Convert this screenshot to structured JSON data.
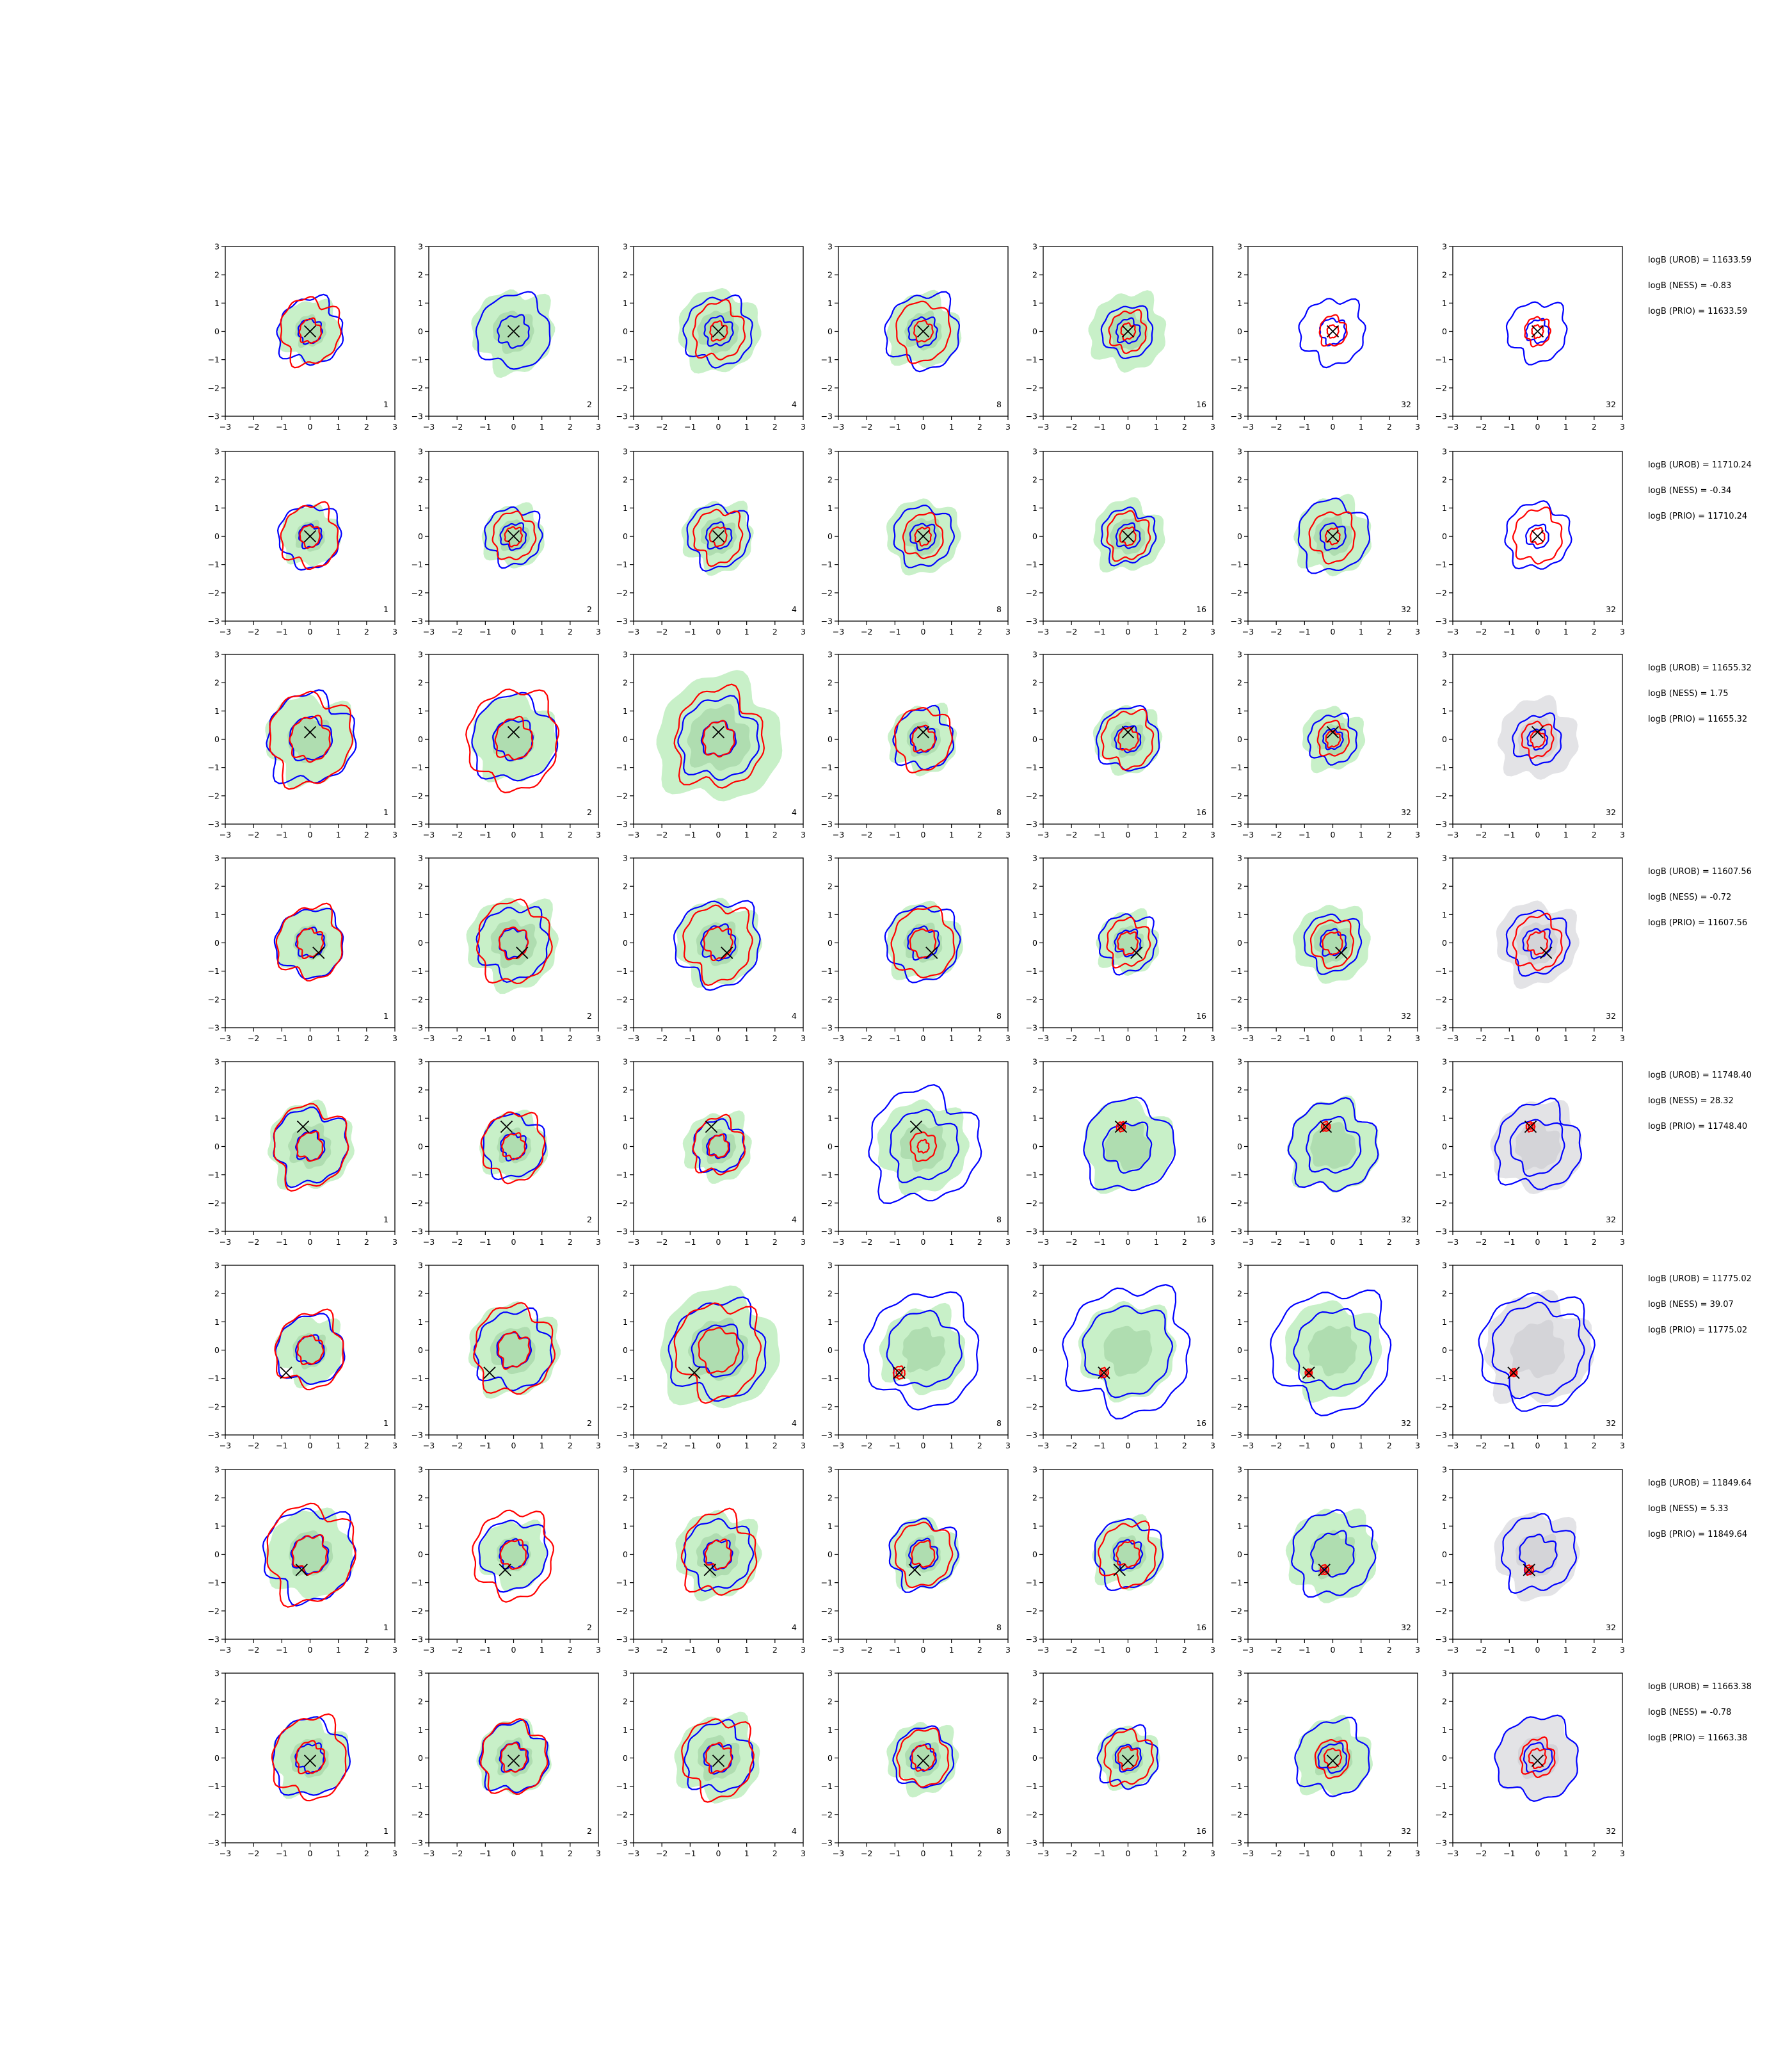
{
  "chart_data": {
    "type": "contour-grid",
    "rows": 8,
    "cols": 7,
    "xlim": [
      -3,
      3
    ],
    "ylim": [
      -3,
      3
    ],
    "ticks": [
      -3,
      -2,
      -1,
      0,
      1,
      2,
      3
    ],
    "tick_labels": [
      "−3",
      "−2",
      "−1",
      "0",
      "1",
      "2",
      "3"
    ],
    "column_labels": [
      "1",
      "2",
      "4",
      "8",
      "16",
      "32",
      "32"
    ],
    "colors": {
      "fill_green": "#c8f0c8",
      "fill_green_inner": "#a9d8aa",
      "fill_gray": "#e3e3e6",
      "fill_gray_inner": "#d0d0d4",
      "contour_blue": "#0000ff",
      "contour_red": "#ff0000",
      "marker": "#000000"
    },
    "row_stats": [
      {
        "urob": "logB (UROB) = 11633.59",
        "ness": "logB (NESS) = -0.83",
        "prio": "logB (PRIO) = 11633.59"
      },
      {
        "urob": "logB (UROB) = 11710.24",
        "ness": "logB (NESS) = -0.34",
        "prio": "logB (PRIO) = 11710.24"
      },
      {
        "urob": "logB (UROB) = 11655.32",
        "ness": "logB (NESS) = 1.75",
        "prio": "logB (PRIO) = 11655.32"
      },
      {
        "urob": "logB (UROB) = 11607.56",
        "ness": "logB (NESS) = -0.72",
        "prio": "logB (PRIO) = 11607.56"
      },
      {
        "urob": "logB (UROB) = 11748.40",
        "ness": "logB (NESS) = 28.32",
        "prio": "logB (PRIO) = 11748.40"
      },
      {
        "urob": "logB (UROB) = 11775.02",
        "ness": "logB (NESS) = 39.07",
        "prio": "logB (PRIO) = 11775.02"
      },
      {
        "urob": "logB (UROB) = 11849.64",
        "ness": "logB (NESS) = 5.33",
        "prio": "logB (PRIO) = 11849.64"
      },
      {
        "urob": "logB (UROB) = 11663.38",
        "ness": "logB (NESS) = -0.78",
        "prio": "logB (PRIO) = 11663.38"
      }
    ],
    "markers": [
      [
        0,
        0
      ],
      [
        0,
        0
      ],
      [
        0,
        0.25
      ],
      [
        0.3,
        -0.35
      ],
      [
        -0.25,
        0.7
      ],
      [
        -0.85,
        -0.8
      ],
      [
        -0.3,
        -0.55
      ],
      [
        0,
        -0.1
      ]
    ],
    "rows_data": [
      [
        {
          "shade": 1.1,
          "blue_outer": 1.15,
          "blue_inner": 0.42,
          "red_outer": 1.05,
          "red_inner": 0.38
        },
        {
          "shade": 1.45,
          "blue_outer": 1.3,
          "blue_inner": 0.55,
          "red_outer": 0,
          "red_inner": 0
        },
        {
          "shade": 1.45,
          "blue_outer": 1.2,
          "blue_inner": 0.5,
          "red_outer": 0.9,
          "red_inner": 0.3
        },
        {
          "shade": 1.3,
          "blue_outer": 1.3,
          "blue_inner": 0.5,
          "red_outer": 0.95,
          "red_inner": 0.33
        },
        {
          "shade": 1.35,
          "blue_outer": 0.9,
          "blue_inner": 0.42,
          "red_outer": 0.65,
          "red_inner": 0.25
        },
        {
          "shade": 0,
          "blue_outer": 1.15,
          "blue_inner": 0.45,
          "red_outer": 0.48,
          "red_inner": 0.2
        },
        {
          "shade": 0,
          "blue_outer": 1.05,
          "blue_inner": 0.4,
          "red_outer": 0.45,
          "red_inner": 0.2
        }
      ],
      [
        {
          "shade": 1.05,
          "blue_outer": 1.1,
          "blue_inner": 0.4,
          "red_outer": 1.0,
          "red_inner": 0.35
        },
        {
          "shade": 1.1,
          "blue_outer": 1.0,
          "blue_inner": 0.45,
          "red_outer": 0.75,
          "red_inner": 0.3
        },
        {
          "shade": 1.25,
          "blue_outer": 1.1,
          "blue_inner": 0.45,
          "red_outer": 0.85,
          "red_inner": 0.3
        },
        {
          "shade": 1.3,
          "blue_outer": 1.05,
          "blue_inner": 0.45,
          "red_outer": 0.7,
          "red_inner": 0.28
        },
        {
          "shade": 1.25,
          "blue_outer": 0.95,
          "blue_inner": 0.42,
          "red_outer": 0.75,
          "red_inner": 0.28
        },
        {
          "shade": 1.35,
          "blue_outer": 1.25,
          "blue_inner": 0.45,
          "red_outer": 0.8,
          "red_inner": 0.25
        },
        {
          "shade": 0,
          "blue_outer": 1.15,
          "blue_inner": 0.4,
          "red_outer": 0.85,
          "red_inner": 0.25
        }
      ],
      [
        {
          "shade": 1.55,
          "blue_outer": 1.55,
          "blue_inner": 0.75,
          "red_outer": 1.45,
          "red_inner": 0.7
        },
        {
          "shade": 1.5,
          "blue_outer": 1.5,
          "blue_inner": 0.7,
          "red_outer": 1.6,
          "red_inner": 0.65
        },
        {
          "shade": 2.2,
          "blue_outer": 1.4,
          "blue_inner": 0.6,
          "red_outer": 1.55,
          "red_inner": 0.55
        },
        {
          "shade": 1.2,
          "blue_outer": 1.05,
          "blue_inner": 0.45,
          "red_outer": 1.0,
          "red_inner": 0.4
        },
        {
          "shade": 1.2,
          "blue_outer": 1.1,
          "blue_inner": 0.45,
          "red_outer": 0.9,
          "red_inner": 0.35
        },
        {
          "shade": 1.1,
          "blue_outer": 0.85,
          "blue_inner": 0.35,
          "red_outer": 0.55,
          "red_inner": 0.25
        },
        {
          "shade": 1.4,
          "blue_outer": 0.85,
          "blue_inner": 0.35,
          "red_outer": 0.55,
          "red_inner": 0.25
        }
      ],
      [
        {
          "shade": 1.2,
          "blue_outer": 1.2,
          "blue_inner": 0.5,
          "red_outer": 1.15,
          "red_inner": 0.45
        },
        {
          "shade": 1.6,
          "blue_outer": 1.25,
          "blue_inner": 0.5,
          "red_outer": 1.3,
          "red_inner": 0.5
        },
        {
          "shade": 1.5,
          "blue_outer": 1.5,
          "blue_inner": 0.6,
          "red_outer": 1.2,
          "red_inner": 0.5
        },
        {
          "shade": 1.35,
          "blue_outer": 1.3,
          "blue_inner": 0.55,
          "red_outer": 1.1,
          "red_inner": 0.45
        },
        {
          "shade": 1.1,
          "blue_outer": 1.0,
          "blue_inner": 0.45,
          "red_outer": 0.75,
          "red_inner": 0.35
        },
        {
          "shade": 1.35,
          "blue_outer": 1.0,
          "blue_inner": 0.45,
          "red_outer": 0.75,
          "red_inner": 0.35
        },
        {
          "shade": 1.45,
          "blue_outer": 1.1,
          "blue_inner": 0.5,
          "red_outer": 0.85,
          "red_inner": 0.35
        }
      ],
      [
        {
          "shade": 1.5,
          "blue_outer": 1.3,
          "blue_inner": 0.5,
          "red_outer": 1.3,
          "red_inner": 0.45
        },
        {
          "shade": 1.2,
          "blue_outer": 1.1,
          "blue_inner": 0.45,
          "red_outer": 1.1,
          "red_inner": 0.4
        },
        {
          "shade": 1.2,
          "blue_outer": 0.9,
          "blue_inner": 0.4,
          "red_outer": 0.9,
          "red_inner": 0.35
        },
        {
          "shade": 1.6,
          "blue_outer": 1.95,
          "blue_inner": 1.2,
          "red_outer": 0.45,
          "red_inner": 0.2
        },
        {
          "shade": 1.6,
          "blue_outer": 1.6,
          "blue_inner": 0.85,
          "red_outer": 0.15,
          "red_inner": 0.08
        },
        {
          "shade": 1.6,
          "blue_outer": 1.55,
          "blue_inner": 0.95,
          "red_outer": 0.15,
          "red_inner": 0.08
        },
        {
          "shade": 1.6,
          "blue_outer": 1.5,
          "blue_inner": 0.95,
          "red_outer": 0.15,
          "red_inner": 0.08
        }
      ],
      [
        {
          "shade": 1.2,
          "blue_outer": 1.2,
          "blue_inner": 0.5,
          "red_outer": 1.2,
          "red_inner": 0.45
        },
        {
          "shade": 1.6,
          "blue_outer": 1.35,
          "blue_inner": 0.6,
          "red_outer": 1.4,
          "red_inner": 0.55
        },
        {
          "shade": 2.1,
          "blue_outer": 1.7,
          "blue_inner": 0.9,
          "red_outer": 1.5,
          "red_inner": 0.7
        },
        {
          "shade": 1.5,
          "blue_outer": 2.0,
          "blue_inner": 1.3,
          "red_outer": 0.2,
          "red_inner": 0.1
        },
        {
          "shade": 1.7,
          "blue_outer": 2.2,
          "blue_inner": 1.55,
          "red_outer": 0.15,
          "red_inner": 0.08
        },
        {
          "shade": 1.7,
          "blue_outer": 2.1,
          "blue_inner": 1.35,
          "red_outer": 0.12,
          "red_inner": 0.06
        },
        {
          "shade": 1.9,
          "blue_outer": 2.0,
          "blue_inner": 1.6,
          "red_outer": 0.12,
          "red_inner": 0.06
        }
      ],
      [
        {
          "shade": 1.55,
          "blue_outer": 1.6,
          "blue_inner": 0.65,
          "red_outer": 1.55,
          "red_inner": 0.6
        },
        {
          "shade": 1.2,
          "blue_outer": 1.2,
          "blue_inner": 0.5,
          "red_outer": 1.4,
          "red_inner": 0.45
        },
        {
          "shade": 1.5,
          "blue_outer": 1.2,
          "blue_inner": 0.5,
          "red_outer": 1.3,
          "red_inner": 0.45
        },
        {
          "shade": 1.25,
          "blue_outer": 1.2,
          "blue_inner": 0.5,
          "red_outer": 1.0,
          "red_inner": 0.4
        },
        {
          "shade": 1.25,
          "blue_outer": 1.2,
          "blue_inner": 0.5,
          "red_outer": 1.0,
          "red_inner": 0.4
        },
        {
          "shade": 1.6,
          "blue_outer": 1.45,
          "blue_inner": 0.75,
          "red_outer": 0.15,
          "red_inner": 0.08
        },
        {
          "shade": 1.5,
          "blue_outer": 1.3,
          "blue_inner": 0.65,
          "red_outer": 0.15,
          "red_inner": 0.08
        }
      ],
      [
        {
          "shade": 1.35,
          "blue_outer": 1.35,
          "blue_inner": 0.5,
          "red_outer": 1.3,
          "red_inner": 0.5
        },
        {
          "shade": 1.3,
          "blue_outer": 1.2,
          "blue_inner": 0.5,
          "red_outer": 1.15,
          "red_inner": 0.45
        },
        {
          "shade": 1.5,
          "blue_outer": 1.2,
          "blue_inner": 0.5,
          "red_outer": 1.25,
          "red_inner": 0.45
        },
        {
          "shade": 1.25,
          "blue_outer": 1.05,
          "blue_inner": 0.45,
          "red_outer": 0.9,
          "red_inner": 0.4
        },
        {
          "shade": 1.1,
          "blue_outer": 1.05,
          "blue_inner": 0.45,
          "red_outer": 0.85,
          "red_inner": 0.35
        },
        {
          "shade": 1.35,
          "blue_outer": 1.3,
          "blue_inner": 0.5,
          "red_outer": 0.6,
          "red_inner": 0.3
        },
        {
          "shade": 1.45,
          "blue_outer": 1.45,
          "blue_inner": 0.5,
          "red_outer": 0.6,
          "red_inner": 0.3
        }
      ]
    ]
  }
}
